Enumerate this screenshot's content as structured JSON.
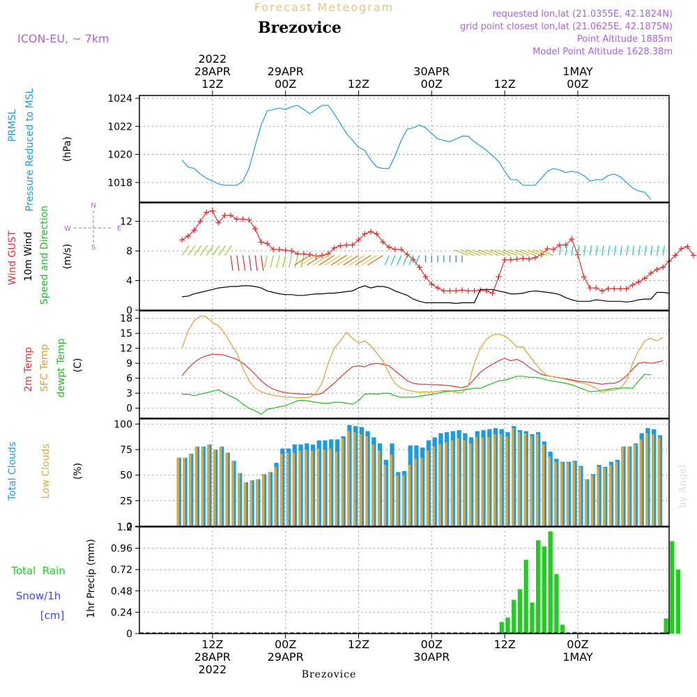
{
  "header": {
    "product": "Forecast Meteogram",
    "location": "Brezovice",
    "model": "ICON-EU, ~ 7km",
    "requested": "requested lon,lat (21.0355E, 42.1824N)",
    "gridpoint": "grid point closest lon,lat (21.0625E, 42.1875N)",
    "point_alt": "Point Altitude 1885m",
    "model_alt": "Model Point Altitude 1628.38m",
    "footer": "Brezovice",
    "credit": "by Angel"
  },
  "time_axis": {
    "top": [
      {
        "x": 12,
        "lines": [
          "2022",
          "28APR",
          "12Z"
        ]
      },
      {
        "x": 24,
        "lines": [
          "29APR",
          "00Z"
        ]
      },
      {
        "x": 36,
        "lines": [
          "12Z"
        ]
      },
      {
        "x": 48,
        "lines": [
          "30APR",
          "00Z"
        ]
      },
      {
        "x": 60,
        "lines": [
          "12Z"
        ]
      },
      {
        "x": 72,
        "lines": [
          "1MAY",
          "00Z"
        ]
      }
    ],
    "bottom": [
      {
        "x": 12,
        "lines": [
          "12Z",
          "28APR",
          "2022"
        ]
      },
      {
        "x": 24,
        "lines": [
          "00Z",
          "29APR"
        ]
      },
      {
        "x": 36,
        "lines": [
          "12Z"
        ]
      },
      {
        "x": 48,
        "lines": [
          "00Z",
          "30APR"
        ]
      },
      {
        "x": 60,
        "lines": [
          "12Z"
        ]
      },
      {
        "x": 72,
        "lines": [
          "00Z",
          "1MAY"
        ]
      }
    ]
  },
  "colors": {
    "pressure": "#1e9be0",
    "gust": "#e83030",
    "wind": "#000000",
    "temp2m": "#e03535",
    "sfc": "#e0a030",
    "dewpt": "#22bb22",
    "total_cloud": "#1e9be0",
    "low_cloud": "#d4a94c",
    "rain": "#22cc22",
    "snow": "#4444ee",
    "header_sfc": "#e8c47a",
    "header_purple": "#b060e0"
  },
  "chart_data": [
    {
      "type": "line",
      "panel": "pressure",
      "label_lines": [
        "PRMSL",
        "Pressure Reduced to MSL"
      ],
      "unit": "(hPa)",
      "ylim": [
        1016.6,
        1024.2
      ],
      "yticks": [
        "1018",
        "1020",
        "1022",
        "1024"
      ],
      "series": [
        {
          "name": "PRMSL",
          "x_start": 7,
          "values": [
            1019.6,
            1019.1,
            1019,
            1018.6,
            1018.3,
            1018.1,
            1017.9,
            1017.8,
            1017.8,
            1017.8,
            1018.1,
            1019,
            1020.6,
            1022.1,
            1023.1,
            1023.2,
            1023.3,
            1023.2,
            1023.4,
            1023.5,
            1023.2,
            1022.9,
            1023.2,
            1023.5,
            1023.5,
            1022.9,
            1022.2,
            1021.5,
            1021,
            1020.5,
            1020.3,
            1019.6,
            1019.1,
            1019,
            1019,
            1019.9,
            1021,
            1021.8,
            1021.9,
            1022.1,
            1021.9,
            1021.5,
            1021.1,
            1021,
            1020.9,
            1021.1,
            1021.3,
            1021.3,
            1020.9,
            1020.6,
            1020.3,
            1019.9,
            1019.5,
            1018.8,
            1018.2,
            1018.2,
            1017.8,
            1017.8,
            1017.8,
            1018.3,
            1018.8,
            1019,
            1018.9,
            1018.7,
            1018.8,
            1018.7,
            1018.5,
            1018.1,
            1018.2,
            1018.2,
            1018.5,
            1018.6,
            1018.4,
            1018,
            1017.6,
            1017.4,
            1017.3,
            1016.8
          ]
        }
      ]
    },
    {
      "type": "line",
      "panel": "wind",
      "label_lines": [
        "Wind GUST",
        "10m Wind",
        "Speed and Direction"
      ],
      "unit": "(m/s)",
      "compass": {
        "n": "N",
        "s": "S",
        "w": "W",
        "e": "E"
      },
      "ylim": [
        0,
        14.5
      ],
      "yticks": [
        "0",
        "4",
        "8",
        "12"
      ],
      "series": [
        {
          "name": "Wind GUST",
          "x_start": 7,
          "values": [
            9.5,
            10,
            10.8,
            12,
            13.2,
            13.4,
            11.8,
            12.8,
            12.8,
            12.3,
            12.3,
            12.2,
            11,
            9.2,
            9,
            8.2,
            8.2,
            8.1,
            8,
            7.6,
            7.6,
            7.5,
            7.3,
            7.4,
            7.6,
            8.4,
            8.7,
            8.8,
            8.8,
            9.5,
            10.3,
            10.6,
            10.3,
            9.2,
            8.5,
            8.2,
            8.2,
            7.5,
            6.8,
            5.8,
            4.5,
            3.5,
            3,
            2.6,
            2.6,
            2.6,
            2.7,
            2.6,
            2.6,
            2.7,
            2.6,
            2.3,
            4.5,
            6.8,
            6.8,
            6.9,
            7,
            6.9,
            7.1,
            7.5,
            8.3,
            8.2,
            8.8,
            8.8,
            9.6,
            7.5,
            4.5,
            3,
            3,
            2.6,
            2.9,
            2.9,
            2.9,
            2.9,
            3.4,
            3.8,
            4.3,
            5,
            5.5,
            5.8,
            6.6,
            7.4,
            8.3,
            8.6,
            7.4
          ]
        },
        {
          "name": "10m Wind",
          "x_start": 7,
          "values": [
            1.8,
            1.9,
            2.2,
            2.4,
            2.6,
            2.8,
            3,
            3.1,
            3.2,
            3.2,
            3.3,
            3.3,
            3.2,
            3,
            2.6,
            2.4,
            2.2,
            2.1,
            2.1,
            2,
            2,
            2.1,
            2.2,
            2.2,
            2.3,
            2.3,
            2.4,
            2.5,
            2.6,
            3,
            3.3,
            3,
            3.2,
            3.2,
            3,
            2.6,
            2.3,
            2,
            1.5,
            1.2,
            1,
            1,
            1,
            1,
            1,
            0.9,
            1,
            1,
            1,
            2.8,
            2.8,
            2.8,
            2.6,
            2.4,
            2.2,
            2.2,
            2.3,
            2.5,
            2.6,
            2.5,
            2.4,
            2.3,
            2.1,
            1.7,
            1.4,
            1.2,
            1.2,
            1.2,
            1.4,
            1.3,
            1.2,
            1.2,
            1.2,
            1.1,
            1.2,
            1.4,
            1.5,
            1.5,
            2.4,
            2.4,
            2.3
          ]
        }
      ]
    },
    {
      "type": "line",
      "panel": "temperature",
      "label_lines": [
        "2m Temp",
        "SFC Temp",
        "dewpt Temp"
      ],
      "unit": "(C)",
      "ylim": [
        -2,
        19.5
      ],
      "yticks": [
        "0",
        "3",
        "6",
        "9",
        "12",
        "15",
        "18"
      ],
      "series": [
        {
          "name": "2m Temp",
          "x_start": 7,
          "values": [
            6.5,
            8,
            9.2,
            10,
            10.5,
            10.8,
            10.8,
            10.6,
            10.2,
            9.8,
            9,
            8,
            6.8,
            5.5,
            4.5,
            3.8,
            3.4,
            3.1,
            3,
            2.9,
            2.8,
            2.8,
            2.7,
            3,
            4,
            5,
            6.2,
            7.3,
            8.3,
            8.5,
            8.3,
            8.8,
            9,
            8.8,
            8.5,
            7.5,
            6.5,
            5.5,
            5,
            4.8,
            4.8,
            4.7,
            4.7,
            4.6,
            4.5,
            4.3,
            4.1,
            4.5,
            5.8,
            7.2,
            8.1,
            8.8,
            9.5,
            10,
            9.5,
            9.8,
            9.2,
            8.2,
            7.5,
            6.8,
            6.5,
            6.3,
            6.1,
            5.9,
            5.7,
            5.4,
            5.3,
            5.2,
            5,
            4.8,
            5,
            5,
            5.5,
            6.5,
            7.8,
            9,
            9.2,
            9,
            9.2,
            9.5
          ]
        },
        {
          "name": "SFC Temp",
          "x_start": 7,
          "values": [
            12,
            15.5,
            17.5,
            18.5,
            18.3,
            17.2,
            16.5,
            15,
            13,
            11,
            8,
            5.5,
            4,
            3.3,
            2.9,
            2.6,
            2.4,
            2.2,
            2.2,
            2.1,
            2.1,
            2.2,
            3,
            5,
            9,
            12,
            13.5,
            15.2,
            14,
            13,
            13.5,
            12.5,
            11,
            9.5,
            7,
            5,
            4,
            3.6,
            3.4,
            3.2,
            3.3,
            3.2,
            3.4,
            3.5,
            3.5,
            3.2,
            3,
            4.5,
            9,
            12,
            13.8,
            14.7,
            14.8,
            14.5,
            13.5,
            12.3,
            12.3,
            10.6,
            9,
            7.5,
            6.5,
            6.3,
            6.1,
            5.8,
            5.5,
            5.2,
            5,
            4.6,
            4,
            3.2,
            3.6,
            3.6,
            4,
            5.5,
            9,
            11.5,
            13.5,
            14,
            13.5,
            14.2
          ]
        },
        {
          "name": "dewpt Temp",
          "x_start": 7,
          "values": [
            2.8,
            2.8,
            2.5,
            2.8,
            3.1,
            3.4,
            3.7,
            3,
            2.4,
            1.8,
            0.8,
            0,
            -0.5,
            -1.2,
            -0.2,
            0,
            0.3,
            0.5,
            1,
            1.5,
            1.6,
            1.4,
            1.2,
            1,
            1,
            1.2,
            1.2,
            1,
            0.8,
            1.5,
            2.8,
            2.9,
            2.8,
            3,
            3,
            2.5,
            2.2,
            2.2,
            2.2,
            2.4,
            2.6,
            2.8,
            3,
            3.3,
            3.4,
            3.5,
            3.6,
            3.8,
            4,
            4,
            4.5,
            5,
            5.5,
            5.6,
            6,
            6.4,
            6.4,
            6.2,
            6.2,
            6,
            5.6,
            5.4,
            5.2,
            5,
            4.7,
            4.2,
            3.8,
            3.3,
            3.4,
            3.6,
            3.8,
            4,
            4,
            4.1,
            4,
            5.5,
            6.8,
            6.7
          ]
        }
      ]
    },
    {
      "type": "bar",
      "panel": "clouds",
      "label_lines": [
        "Total Clouds",
        "Low Clouds"
      ],
      "unit": "(%)",
      "ylim": [
        0,
        105
      ],
      "yticks": [
        "0",
        "25",
        "50",
        "75",
        "100"
      ],
      "x_start": 7,
      "series": [
        {
          "name": "Total Clouds",
          "values": [
            67,
            67,
            71,
            78,
            78,
            80,
            75,
            78,
            72,
            64,
            52,
            43,
            45,
            46,
            51,
            53,
            62,
            76,
            76,
            80,
            80,
            81,
            80,
            84,
            84,
            85,
            85,
            88,
            99,
            98,
            97,
            93,
            87,
            81,
            65,
            81,
            53,
            54,
            79,
            79,
            77,
            84,
            87,
            91,
            92,
            93,
            94,
            91,
            87,
            93,
            94,
            95,
            96,
            95,
            92,
            98,
            94,
            93,
            90,
            92,
            83,
            73,
            66,
            63,
            63,
            64,
            59,
            46,
            51,
            60,
            58,
            63,
            65,
            78,
            78,
            81,
            91,
            96,
            95,
            89
          ]
        },
        {
          "name": "Low Clouds",
          "values": [
            67,
            67,
            71,
            78,
            78,
            80,
            75,
            78,
            72,
            64,
            52,
            43,
            45,
            46,
            51,
            53,
            58,
            71,
            72,
            72,
            74,
            75,
            74,
            76,
            75,
            76,
            73,
            86,
            93,
            92,
            90,
            88,
            80,
            74,
            60,
            70,
            50,
            50,
            60,
            66,
            67,
            74,
            78,
            80,
            82,
            84,
            86,
            84,
            81,
            87,
            87,
            87,
            90,
            90,
            88,
            96,
            92,
            91,
            88,
            90,
            80,
            68,
            63,
            62,
            62,
            63,
            58,
            46,
            50,
            58,
            57,
            60,
            63,
            78,
            78,
            80,
            85,
            91,
            90,
            87
          ]
        }
      ]
    },
    {
      "type": "bar",
      "panel": "precip",
      "label_lines": [
        "Total  Rain",
        "Snow/1h",
        "[cm]"
      ],
      "ylabel": "1hr Precip (mm)",
      "ylim": [
        0,
        1.2
      ],
      "yticks": [
        "0",
        "0.24",
        "0.48",
        "0.72",
        "0.96",
        "1.2"
      ],
      "x_start": 7,
      "series": [
        {
          "name": "Rain",
          "values": [
            0,
            0,
            0,
            0,
            0,
            0,
            0,
            0,
            0,
            0,
            0,
            0,
            0,
            0,
            0,
            0,
            0,
            0,
            0,
            0,
            0,
            0,
            0,
            0,
            0,
            0,
            0,
            0,
            0,
            0,
            0,
            0,
            0,
            0,
            0,
            0,
            0,
            0,
            0,
            0,
            0,
            0,
            0,
            0,
            0,
            0,
            0,
            0,
            0,
            0,
            0,
            0,
            0,
            0.13,
            0.18,
            0.38,
            0.5,
            0.83,
            0.35,
            1.05,
            0.98,
            1.15,
            0.67,
            0.1,
            0,
            0.02,
            0,
            0,
            0,
            0,
            0,
            0,
            0,
            0,
            0,
            0,
            0,
            0,
            0,
            0,
            0.17,
            1.04,
            0.72
          ]
        }
      ]
    }
  ]
}
